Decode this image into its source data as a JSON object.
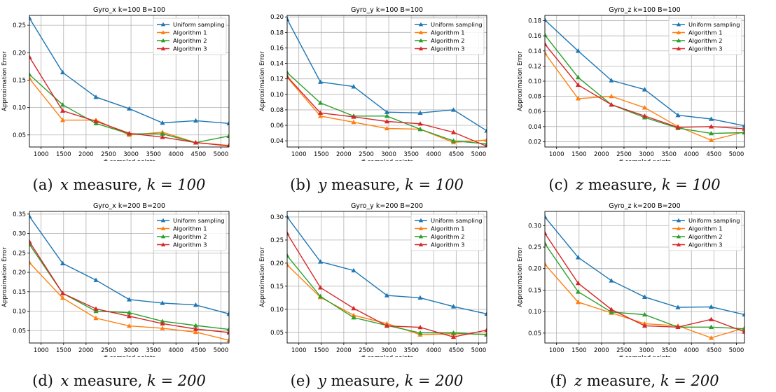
{
  "figure": {
    "legend_labels": [
      "Uniform sampling",
      "Algorithm 1",
      "Algorithm 2",
      "Algorithm 3"
    ],
    "colors": {
      "uniform": "#1f77b4",
      "alg1": "#ff7f0e",
      "alg2": "#2ca02c",
      "alg3": "#d62728"
    }
  },
  "chart_data": [
    {
      "type": "line",
      "title": "Gyro_x k=100 B=100",
      "xlabel": "# sampled points",
      "ylabel": "Approximation Error",
      "caption": {
        "label": "(a)",
        "var": "x",
        "text": "measure,",
        "math": "k = 100"
      },
      "x": [
        740,
        1480,
        2220,
        2960,
        3700,
        4440,
        5180
      ],
      "xlim": [
        740,
        5180
      ],
      "ylim": [
        0.028,
        0.268
      ],
      "xticks": [
        1000,
        1500,
        2000,
        2500,
        3000,
        3500,
        4000,
        4500,
        5000
      ],
      "yticks": [
        0.05,
        0.1,
        0.15,
        0.2,
        0.25
      ],
      "ytick_labels": [
        "0.05",
        "0.10",
        "0.15",
        "0.20",
        "0.25"
      ],
      "grid": true,
      "legend": "upper-right",
      "series": [
        {
          "name": "Uniform sampling",
          "values": [
            0.263,
            0.164,
            0.119,
            0.098,
            0.072,
            0.076,
            0.071
          ]
        },
        {
          "name": "Algorithm 1",
          "values": [
            0.153,
            0.077,
            0.077,
            0.05,
            0.055,
            0.036,
            0.031
          ]
        },
        {
          "name": "Algorithm 2",
          "values": [
            0.16,
            0.105,
            0.071,
            0.052,
            0.052,
            0.036,
            0.048
          ]
        },
        {
          "name": "Algorithm 3",
          "values": [
            0.192,
            0.094,
            0.075,
            0.053,
            0.046,
            0.036,
            0.03
          ]
        }
      ]
    },
    {
      "type": "line",
      "title": "Gyro_y k=100 B=100",
      "xlabel": "# sampled points",
      "ylabel": "Approximation Error",
      "caption": {
        "label": "(b)",
        "var": "y",
        "text": "measure,",
        "math": "k = 100"
      },
      "x": [
        740,
        1480,
        2220,
        2960,
        3700,
        4440,
        5180
      ],
      "xlim": [
        740,
        5180
      ],
      "ylim": [
        0.032,
        0.202
      ],
      "xticks": [
        1000,
        1500,
        2000,
        2500,
        3000,
        3500,
        4000,
        4500,
        5000
      ],
      "yticks": [
        0.04,
        0.06,
        0.08,
        0.1,
        0.12,
        0.14,
        0.16,
        0.18,
        0.2
      ],
      "ytick_labels": [
        "0.04",
        "0.06",
        "0.08",
        "0.10",
        "0.12",
        "0.14",
        "0.16",
        "0.18",
        "0.20"
      ],
      "grid": true,
      "legend": "upper-right",
      "series": [
        {
          "name": "Uniform sampling",
          "values": [
            0.197,
            0.116,
            0.11,
            0.077,
            0.076,
            0.08,
            0.053
          ]
        },
        {
          "name": "Algorithm 1",
          "values": [
            0.122,
            0.072,
            0.064,
            0.056,
            0.055,
            0.038,
            0.041
          ]
        },
        {
          "name": "Algorithm 2",
          "values": [
            0.128,
            0.089,
            0.072,
            0.072,
            0.055,
            0.04,
            0.036
          ]
        },
        {
          "name": "Algorithm 3",
          "values": [
            0.123,
            0.076,
            0.071,
            0.065,
            0.062,
            0.051,
            0.033
          ]
        }
      ]
    },
    {
      "type": "line",
      "title": "Gyro_z k=100 B=100",
      "xlabel": "# sampled points",
      "ylabel": "Approximation Error",
      "caption": {
        "label": "(c)",
        "var": "z",
        "text": "measure,",
        "math": "k = 100"
      },
      "x": [
        740,
        1480,
        2220,
        2960,
        3700,
        4440,
        5180
      ],
      "xlim": [
        740,
        5180
      ],
      "ylim": [
        0.013,
        0.187
      ],
      "xticks": [
        1000,
        1500,
        2000,
        2500,
        3000,
        3500,
        4000,
        4500,
        5000
      ],
      "yticks": [
        0.02,
        0.04,
        0.06,
        0.08,
        0.1,
        0.12,
        0.14,
        0.16,
        0.18
      ],
      "ytick_labels": [
        "0.02",
        "0.04",
        "0.06",
        "0.08",
        "0.10",
        "0.12",
        "0.14",
        "0.16",
        "0.18"
      ],
      "grid": true,
      "legend": "upper-right",
      "series": [
        {
          "name": "Uniform sampling",
          "values": [
            0.181,
            0.14,
            0.101,
            0.089,
            0.055,
            0.05,
            0.041
          ]
        },
        {
          "name": "Algorithm 1",
          "values": [
            0.137,
            0.077,
            0.08,
            0.065,
            0.04,
            0.022,
            0.033
          ]
        },
        {
          "name": "Algorithm 2",
          "values": [
            0.161,
            0.105,
            0.069,
            0.052,
            0.038,
            0.031,
            0.032
          ]
        },
        {
          "name": "Algorithm 3",
          "values": [
            0.149,
            0.095,
            0.069,
            0.054,
            0.039,
            0.04,
            0.037
          ]
        }
      ]
    },
    {
      "type": "line",
      "title": "Gyro_x k=200 B=200",
      "xlabel": "# sampled points",
      "ylabel": "Approximation Error",
      "caption": {
        "label": "(d)",
        "var": "x",
        "text": "measure,",
        "math": "k = 200"
      },
      "x": [
        740,
        1480,
        2220,
        2960,
        3700,
        4440,
        5180
      ],
      "xlim": [
        740,
        5180
      ],
      "ylim": [
        0.018,
        0.357
      ],
      "xticks": [
        1000,
        1500,
        2000,
        2500,
        3000,
        3500,
        4000,
        4500,
        5000
      ],
      "yticks": [
        0.05,
        0.1,
        0.15,
        0.2,
        0.25,
        0.3,
        0.35
      ],
      "ytick_labels": [
        "0.05",
        "0.10",
        "0.15",
        "0.20",
        "0.25",
        "0.30",
        "0.35"
      ],
      "grid": true,
      "legend": "upper-right",
      "series": [
        {
          "name": "Uniform sampling",
          "values": [
            0.344,
            0.223,
            0.18,
            0.13,
            0.121,
            0.116,
            0.093
          ]
        },
        {
          "name": "Algorithm 1",
          "values": [
            0.225,
            0.134,
            0.082,
            0.062,
            0.056,
            0.046,
            0.025
          ]
        },
        {
          "name": "Algorithm 2",
          "values": [
            0.272,
            0.146,
            0.1,
            0.096,
            0.074,
            0.063,
            0.053
          ]
        },
        {
          "name": "Algorithm 3",
          "values": [
            0.279,
            0.146,
            0.106,
            0.087,
            0.068,
            0.054,
            0.045
          ]
        }
      ]
    },
    {
      "type": "line",
      "title": "Gyro_y k=200 B=200",
      "xlabel": "# sampled points",
      "ylabel": "Approximation Error",
      "caption": {
        "label": "(e)",
        "var": "y",
        "text": "measure,",
        "math": "k = 200"
      },
      "x": [
        740,
        1480,
        2220,
        2960,
        3700,
        4440,
        5180
      ],
      "xlim": [
        740,
        5180
      ],
      "ylim": [
        0.027,
        0.312
      ],
      "xticks": [
        1000,
        1500,
        2000,
        2500,
        3000,
        3500,
        4000,
        4500,
        5000
      ],
      "yticks": [
        0.05,
        0.1,
        0.15,
        0.2,
        0.25,
        0.3
      ],
      "ytick_labels": [
        "0.05",
        "0.10",
        "0.15",
        "0.20",
        "0.25",
        "0.30"
      ],
      "grid": true,
      "legend": "upper-right",
      "series": [
        {
          "name": "Uniform sampling",
          "values": [
            0.3,
            0.203,
            0.184,
            0.13,
            0.125,
            0.106,
            0.09
          ]
        },
        {
          "name": "Algorithm 1",
          "values": [
            0.196,
            0.126,
            0.087,
            0.069,
            0.045,
            0.047,
            0.046
          ]
        },
        {
          "name": "Algorithm 2",
          "values": [
            0.216,
            0.128,
            0.082,
            0.065,
            0.049,
            0.049,
            0.045
          ]
        },
        {
          "name": "Algorithm 3",
          "values": [
            0.264,
            0.147,
            0.102,
            0.064,
            0.061,
            0.04,
            0.055
          ]
        }
      ]
    },
    {
      "type": "line",
      "title": "Gyro_z k=200 B=200",
      "xlabel": "# sampled points",
      "ylabel": "Approximation Error",
      "caption": {
        "label": "(f)",
        "var": "z",
        "text": "measure,",
        "math": "k = 200"
      },
      "x": [
        740,
        1480,
        2220,
        2960,
        3700,
        4440,
        5180
      ],
      "xlim": [
        740,
        5180
      ],
      "ylim": [
        0.027,
        0.333
      ],
      "xticks": [
        1000,
        1500,
        2000,
        2500,
        3000,
        3500,
        4000,
        4500,
        5000
      ],
      "yticks": [
        0.05,
        0.1,
        0.15,
        0.2,
        0.25,
        0.3
      ],
      "ytick_labels": [
        "0.05",
        "0.10",
        "0.15",
        "0.20",
        "0.25",
        "0.30"
      ],
      "grid": true,
      "legend": "upper-right",
      "series": [
        {
          "name": "Uniform sampling",
          "values": [
            0.32,
            0.226,
            0.172,
            0.134,
            0.11,
            0.111,
            0.093
          ]
        },
        {
          "name": "Algorithm 1",
          "values": [
            0.21,
            0.122,
            0.097,
            0.072,
            0.067,
            0.039,
            0.062
          ]
        },
        {
          "name": "Algorithm 2",
          "values": [
            0.258,
            0.146,
            0.099,
            0.093,
            0.064,
            0.064,
            0.06
          ]
        },
        {
          "name": "Algorithm 3",
          "values": [
            0.282,
            0.166,
            0.105,
            0.067,
            0.064,
            0.082,
            0.053
          ]
        }
      ]
    }
  ]
}
